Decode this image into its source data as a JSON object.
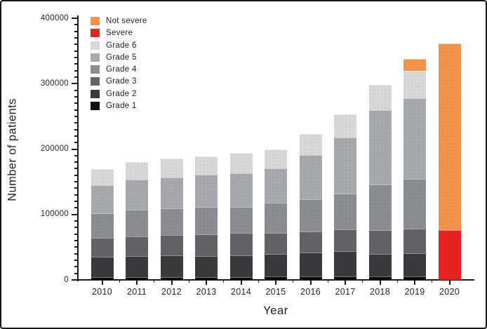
{
  "figure": {
    "ylabel": "Number of patients",
    "xlabel": "Year",
    "background": "#ffffff",
    "border_color": "#161616"
  },
  "axes": {
    "y_tick_labels": [
      "0",
      "100000",
      "200000",
      "300000",
      "400000"
    ],
    "y_major_step": 100000,
    "y_minor_step": 10000,
    "x_tick_labels": [
      "2010",
      "2011",
      "2012",
      "2013",
      "2014",
      "2015",
      "2016",
      "2017",
      "2018",
      "2019",
      "2020"
    ]
  },
  "legend": {
    "items": [
      {
        "label": "Not severe",
        "color": "#F4934B"
      },
      {
        "label": "Severe",
        "color": "#E8231F"
      },
      {
        "label": "Grade 6",
        "color": "#D8D8D9"
      },
      {
        "label": "Grade 5",
        "color": "#A7A9AE"
      },
      {
        "label": "Grade 4",
        "color": "#8B8D92"
      },
      {
        "label": "Grade 3",
        "color": "#626367"
      },
      {
        "label": "Grade 2",
        "color": "#3A3A3C"
      },
      {
        "label": "Grade 1",
        "color": "#0C0C0C"
      }
    ]
  },
  "chart_data": {
    "type": "bar",
    "stacked": true,
    "title": "",
    "xlabel": "Year",
    "ylabel": "Number of patients",
    "ylim": [
      0,
      400000
    ],
    "grid": false,
    "legend_position": "upper-left-inside",
    "categories": [
      "2010",
      "2011",
      "2012",
      "2013",
      "2014",
      "2015",
      "2016",
      "2017",
      "2018",
      "2019",
      "2020"
    ],
    "series": [
      {
        "name": "Grade 1",
        "color": "#0C0C0C",
        "values": [
          4000,
          4000,
          4000,
          4000,
          4000,
          5000,
          5000,
          5000,
          5000,
          5000,
          0
        ]
      },
      {
        "name": "Grade 2",
        "color": "#3A3A3C",
        "values": [
          31000,
          32000,
          33000,
          32000,
          33000,
          35000,
          37000,
          39000,
          35000,
          36000,
          0
        ]
      },
      {
        "name": "Grade 3",
        "color": "#626367",
        "values": [
          29000,
          31000,
          32000,
          34000,
          35000,
          32000,
          32000,
          33000,
          36000,
          37000,
          0
        ]
      },
      {
        "name": "Grade 4",
        "color": "#8B8D92",
        "values": [
          38000,
          40000,
          40000,
          41000,
          40000,
          46000,
          49000,
          55000,
          70000,
          76000,
          0
        ]
      },
      {
        "name": "Grade 5",
        "color": "#A7A9AE",
        "values": [
          43000,
          46000,
          48000,
          50000,
          51000,
          52000,
          68000,
          86000,
          113000,
          124000,
          0
        ]
      },
      {
        "name": "Grade 6",
        "color": "#D8D8D9",
        "values": [
          24000,
          27000,
          28000,
          28000,
          31000,
          30000,
          32000,
          35000,
          39000,
          42000,
          0
        ]
      },
      {
        "name": "Severe",
        "color": "#E8231F",
        "values": [
          0,
          0,
          0,
          0,
          0,
          0,
          0,
          0,
          0,
          0,
          76000
        ]
      },
      {
        "name": "Not severe",
        "color": "#F4934B",
        "values": [
          0,
          0,
          0,
          0,
          0,
          0,
          0,
          0,
          0,
          18000,
          285000
        ]
      }
    ],
    "totals": [
      169000,
      180000,
      185000,
      189000,
      194000,
      200000,
      223000,
      253000,
      298000,
      338000,
      361000
    ]
  }
}
